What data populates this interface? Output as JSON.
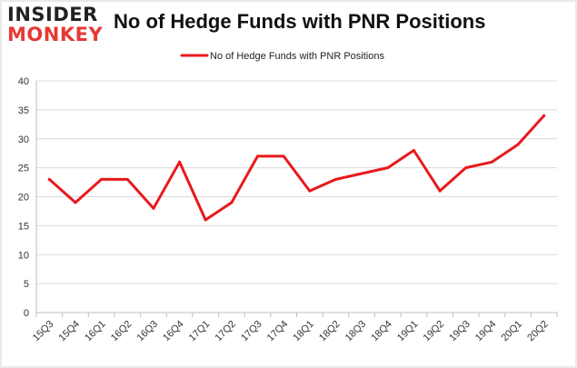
{
  "logo": {
    "line1": "INSIDER",
    "line2": "MONKEY"
  },
  "chart_data": {
    "type": "line",
    "title": "No of Hedge Funds with PNR Positions",
    "xlabel": "",
    "ylabel": "",
    "categories": [
      "15Q3",
      "15Q4",
      "16Q1",
      "16Q2",
      "16Q3",
      "16Q4",
      "17Q1",
      "17Q2",
      "17Q3",
      "17Q4",
      "18Q1",
      "18Q2",
      "18Q3",
      "18Q4",
      "19Q1",
      "19Q2",
      "19Q3",
      "19Q4",
      "20Q1",
      "20Q2"
    ],
    "series": [
      {
        "name": "No of Hedge Funds with PNR Positions",
        "color": "#e8191c",
        "values": [
          23,
          19,
          23,
          23,
          18,
          26,
          16,
          19,
          27,
          27,
          21,
          23,
          24,
          25,
          28,
          21,
          25,
          26,
          29,
          34
        ]
      }
    ],
    "ylim": [
      0,
      40
    ],
    "yticks": [
      0,
      5,
      10,
      15,
      20,
      25,
      30,
      35,
      40
    ],
    "grid": true,
    "legend": "top-center"
  }
}
